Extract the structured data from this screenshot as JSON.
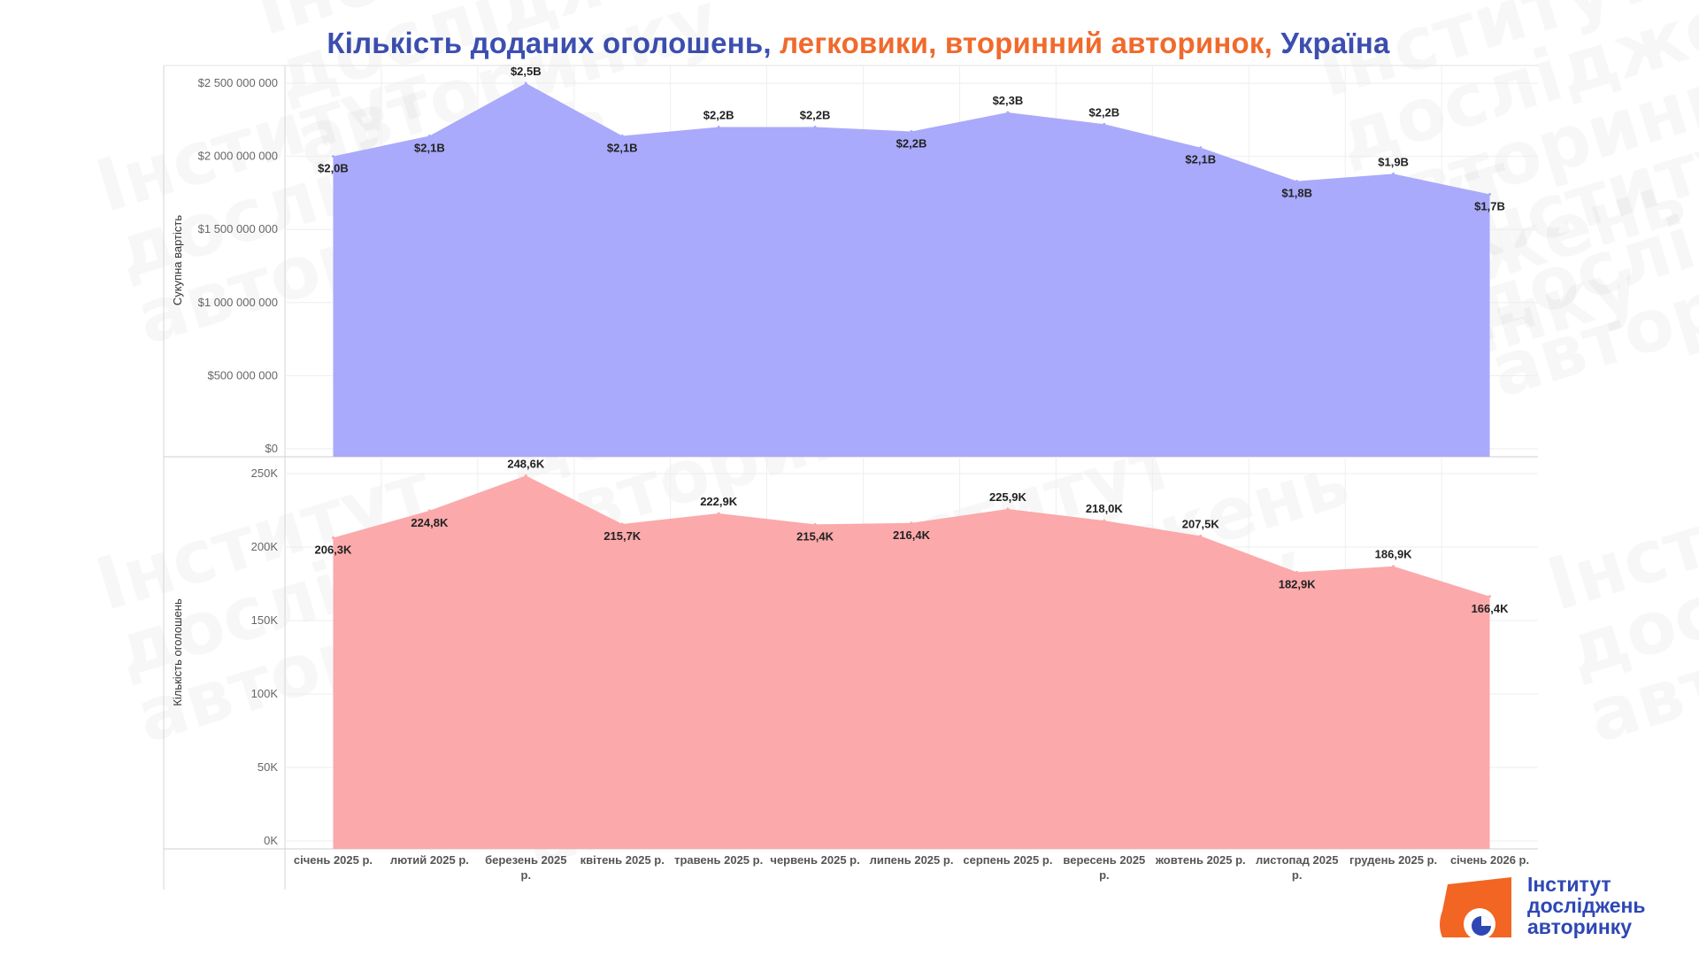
{
  "title": {
    "part1": "Кількість доданих оголошень, ",
    "part2": "легковики, вторинний авторинок, ",
    "part3": "Україна",
    "color_primary": "#3c4fb0",
    "color_accent": "#f06a2c"
  },
  "watermark": {
    "lines": [
      "Інститут",
      "досліджень",
      "авторинку"
    ]
  },
  "logo": {
    "lines": [
      "Інститут",
      "досліджень",
      "авторинку"
    ],
    "icon": "chart-pie-icon",
    "color_orange": "#f26522",
    "color_blue": "#2e47b5"
  },
  "chart_data": [
    {
      "type": "area",
      "ylabel": "Сукупна вартість",
      "ylim": [
        0,
        2500000000
      ],
      "y_ticks": [
        "$0",
        "$500 000 000",
        "$1 000 000 000",
        "$1 500 000 000",
        "$2 000 000 000",
        "$2 500 000 000"
      ],
      "categories": [
        "січень 2025 р.",
        "лютий 2025 р.",
        "березень 2025 р.",
        "квітень 2025 р.",
        "травень 2025 р.",
        "червень 2025 р.",
        "липень 2025 р.",
        "серпень 2025 р.",
        "вересень 2025 р.",
        "жовтень 2025 р.",
        "листопад 2025 р.",
        "грудень 2025 р.",
        "січень 2026 р."
      ],
      "values": [
        2000000000,
        2140000000,
        2500000000,
        2140000000,
        2200000000,
        2200000000,
        2170000000,
        2300000000,
        2220000000,
        2060000000,
        1830000000,
        1880000000,
        1740000000
      ],
      "data_labels": [
        "$2,0B",
        "$2,1B",
        "$2,5B",
        "$2,1B",
        "$2,2B",
        "$2,2B",
        "$2,2B",
        "$2,3B",
        "$2,2B",
        "$2,1B",
        "$1,8B",
        "$1,9B",
        "$1,7B"
      ],
      "label_position": [
        "below",
        "below",
        "above",
        "below",
        "above",
        "above",
        "below",
        "above",
        "above",
        "below",
        "below",
        "above",
        "below"
      ],
      "color": "#a9aafb",
      "grid": true
    },
    {
      "type": "area",
      "ylabel": "Кількість оголошень",
      "ylim": [
        0,
        250000
      ],
      "y_ticks": [
        "0K",
        "50K",
        "100K",
        "150K",
        "200K",
        "250K"
      ],
      "categories": [
        "січень 2025 р.",
        "лютий 2025 р.",
        "березень 2025 р.",
        "квітень 2025 р.",
        "травень 2025 р.",
        "червень 2025 р.",
        "липень 2025 р.",
        "серпень 2025 р.",
        "вересень 2025 р.",
        "жовтень 2025 р.",
        "листопад 2025 р.",
        "грудень 2025 р.",
        "січень 2026 р."
      ],
      "values": [
        206300,
        224800,
        248600,
        215700,
        222900,
        215400,
        216400,
        225900,
        218000,
        207500,
        182900,
        186900,
        166400
      ],
      "data_labels": [
        "206,3K",
        "224,8K",
        "248,6K",
        "215,7K",
        "222,9K",
        "215,4K",
        "216,4K",
        "225,9K",
        "218,0K",
        "207,5K",
        "182,9K",
        "186,9K",
        "166,4K"
      ],
      "label_position": [
        "below",
        "below",
        "above",
        "below",
        "above",
        "below",
        "below",
        "above",
        "above",
        "above",
        "below",
        "above",
        "below"
      ],
      "color": "#fba9ab",
      "grid": true
    }
  ]
}
